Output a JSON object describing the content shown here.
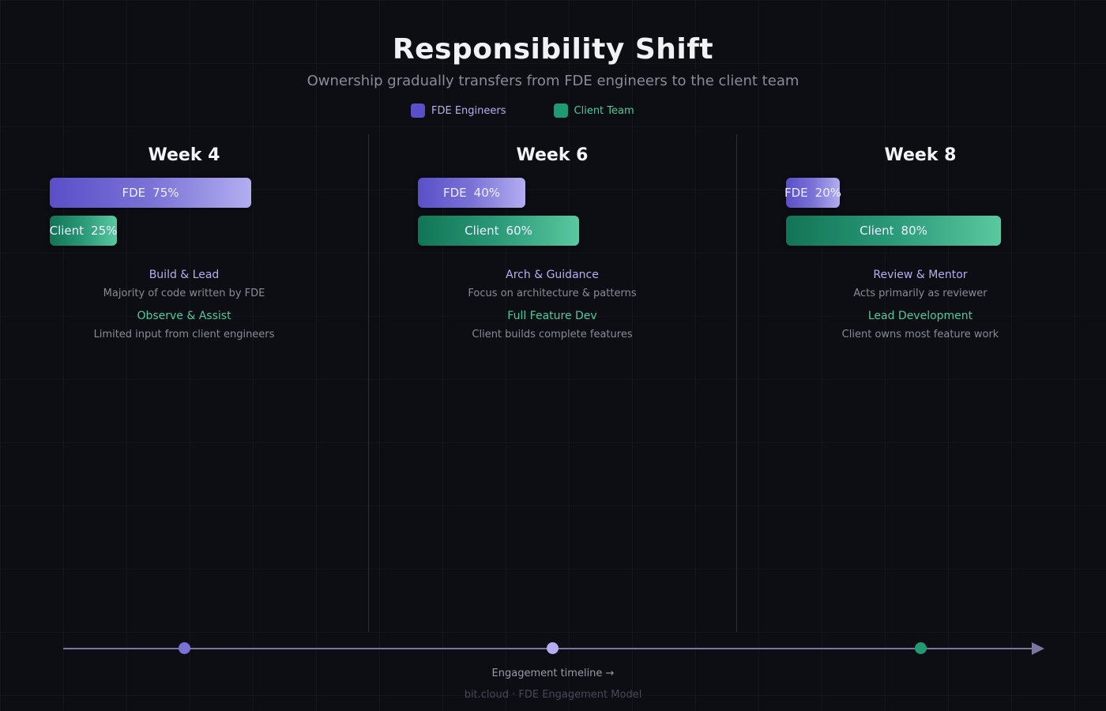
{
  "title": "Responsibility Shift",
  "subtitle": "Ownership gradually transfers from FDE engineers to the client team",
  "legend": {
    "fde": {
      "label": "FDE Engineers",
      "color": "#5a4fc8"
    },
    "client": {
      "label": "Client Team",
      "color": "#1f9a72"
    }
  },
  "chart_data": {
    "type": "bar",
    "categories": [
      "Week 4",
      "Week 6",
      "Week 8"
    ],
    "series": [
      {
        "name": "FDE Engineers",
        "values": [
          75,
          40,
          20
        ]
      },
      {
        "name": "Client Team",
        "values": [
          25,
          60,
          80
        ]
      }
    ]
  },
  "weeks": [
    {
      "label": "Week 4",
      "fde_label": "FDE",
      "fde_value": "75%",
      "client_label": "Client",
      "client_value": "25%",
      "fde_role": "Build & Lead",
      "fde_desc": "Majority of code written by FDE",
      "client_role": "Observe & Assist",
      "client_desc": "Limited input from client engineers"
    },
    {
      "label": "Week 6",
      "fde_label": "FDE",
      "fde_value": "40%",
      "client_label": "Client",
      "client_value": "60%",
      "fde_role": "Arch & Guidance",
      "fde_desc": "Focus on architecture & patterns",
      "client_role": "Full Feature Dev",
      "client_desc": "Client builds complete features"
    },
    {
      "label": "Week 8",
      "fde_label": "FDE",
      "fde_value": "20%",
      "client_label": "Client",
      "client_value": "80%",
      "fde_role": "Review & Mentor",
      "fde_desc": "Acts primarily as reviewer",
      "client_role": "Lead Development",
      "client_desc": "Client owns most feature work"
    }
  ],
  "timeline": {
    "label": "Engagement timeline →",
    "dot_colors": [
      "#7b72d6",
      "#b2aef0",
      "#1f9a72"
    ]
  },
  "footer": "bit.cloud  ·  FDE Engagement Model"
}
